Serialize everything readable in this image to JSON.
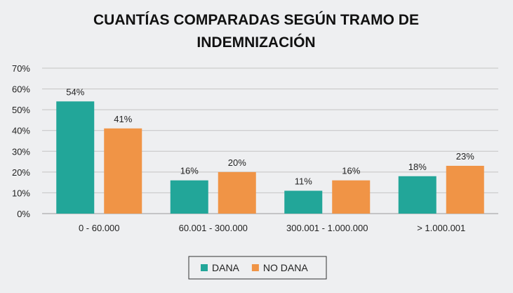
{
  "chart_data": {
    "type": "bar",
    "title_lines": [
      "CUANTÍAS COMPARADAS SEGÚN TRAMO DE",
      "INDEMNIZACIÓN"
    ],
    "categories": [
      "0 - 60.000",
      "60.001 - 300.000",
      "300.001 - 1.000.000",
      "> 1.000.001"
    ],
    "series": [
      {
        "name": "DANA",
        "values": [
          54,
          16,
          11,
          18
        ],
        "labels": [
          "54%",
          "16%",
          "11%",
          "18%"
        ],
        "color": "#22a699"
      },
      {
        "name": "NO DANA",
        "values": [
          41,
          20,
          16,
          23
        ],
        "labels": [
          "41%",
          "20%",
          "16%",
          "23%"
        ],
        "color": "#f09446"
      }
    ],
    "yticks": [
      "0%",
      "10%",
      "20%",
      "30%",
      "40%",
      "50%",
      "60%",
      "70%"
    ],
    "ylim": [
      0,
      70
    ],
    "ystep": 10,
    "grid": true,
    "legend_position": "bottom"
  }
}
